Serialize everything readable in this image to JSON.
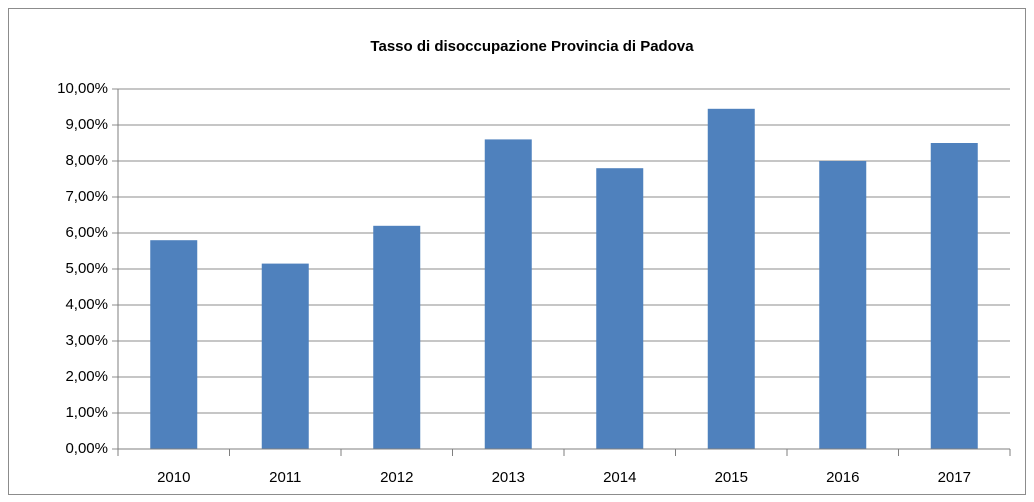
{
  "chart_data": {
    "type": "bar",
    "title": "Tasso di disoccupazione Provincia di Padova",
    "categories": [
      "2010",
      "2011",
      "2012",
      "2013",
      "2014",
      "2015",
      "2016",
      "2017"
    ],
    "values": [
      5.8,
      5.15,
      6.2,
      8.6,
      7.8,
      9.45,
      8.0,
      8.5
    ],
    "color": "#4f81bd",
    "ylim": [
      0,
      10
    ],
    "yticks": [
      {
        "value": 0,
        "label": "0,00%"
      },
      {
        "value": 1,
        "label": "1,00%"
      },
      {
        "value": 2,
        "label": "2,00%"
      },
      {
        "value": 3,
        "label": "3,00%"
      },
      {
        "value": 4,
        "label": "4,00%"
      },
      {
        "value": 5,
        "label": "5,00%"
      },
      {
        "value": 6,
        "label": "6,00%"
      },
      {
        "value": 7,
        "label": "7,00%"
      },
      {
        "value": 8,
        "label": "8,00%"
      },
      {
        "value": 9,
        "label": "9,00%"
      },
      {
        "value": 10,
        "label": "10,00%"
      }
    ],
    "grid": true
  }
}
